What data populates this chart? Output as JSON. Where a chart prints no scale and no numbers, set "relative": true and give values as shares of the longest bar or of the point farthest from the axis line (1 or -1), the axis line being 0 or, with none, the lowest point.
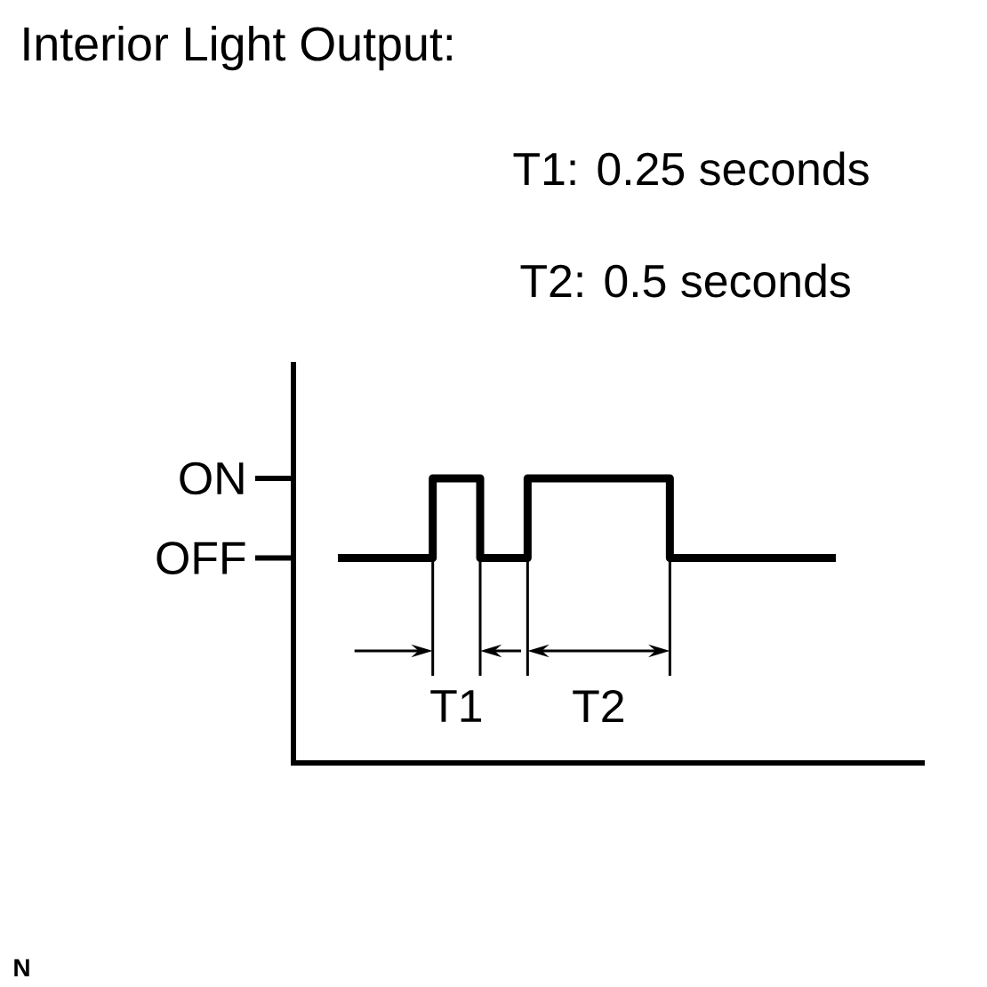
{
  "chart_data": {
    "type": "step",
    "relative": true,
    "title": "Interior Light Output:",
    "categories": [
      null,
      null,
      null,
      null,
      null,
      null,
      null,
      null,
      null,
      null,
      null,
      null,
      null,
      null,
      null,
      null,
      null,
      null,
      null,
      null,
      null,
      null
    ],
    "series": [
      {
        "color": "#000000",
        "values": [
          0.72,
          0.72,
          0.72,
          0.72,
          1,
          1,
          0.72,
          0.72,
          1,
          1,
          1,
          1,
          1,
          1,
          0.72,
          0.72,
          0.72,
          0.72,
          0.72,
          0.72,
          0.72,
          0.72
        ]
      }
    ],
    "tick_labels": "y",
    "annotations": [
      "ON",
      "OFF",
      "T1",
      "T2",
      "T1: 0.25 seconds",
      "T2: 0.5 seconds",
      "N"
    ]
  }
}
